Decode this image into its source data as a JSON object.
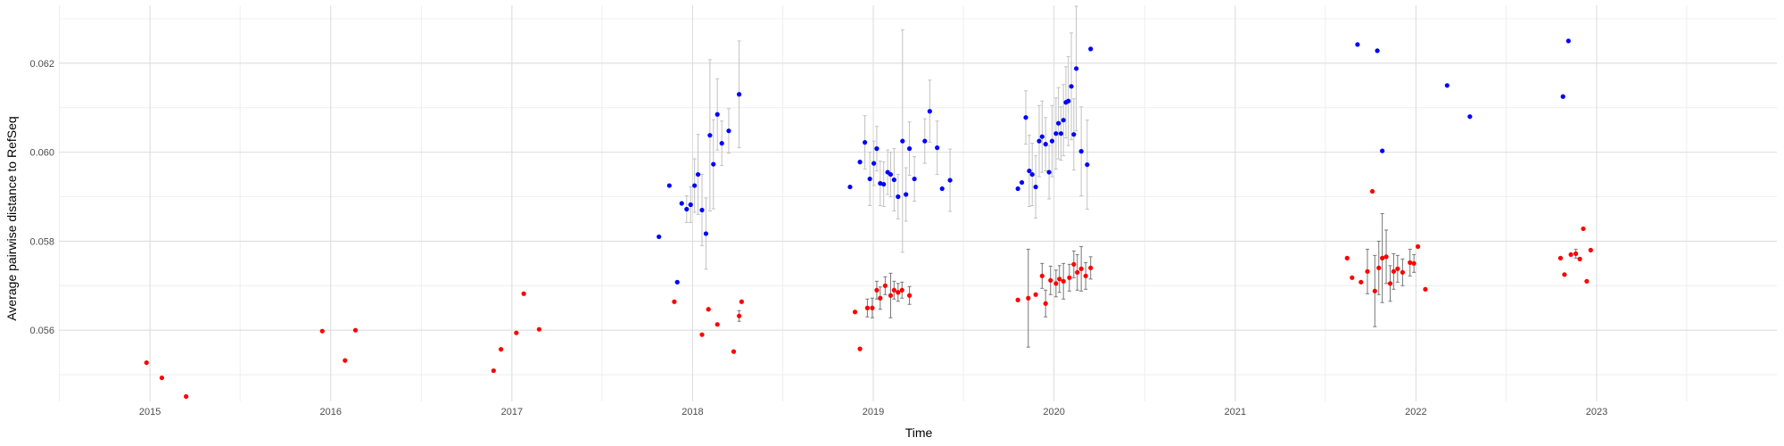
{
  "chart_data": {
    "type": "scatter",
    "title": "",
    "xlabel": "Time",
    "ylabel": "Average pairwise distance to RefSeq",
    "x_type": "date",
    "xlim": [
      "2014-07-01",
      "2023-12-31"
    ],
    "ylim": [
      0.0544,
      0.0633
    ],
    "x_ticks": [
      "2015",
      "2016",
      "2017",
      "2018",
      "2019",
      "2020",
      "2021",
      "2022",
      "2023"
    ],
    "x_tick_dates": [
      "2015-01-01",
      "2016-01-01",
      "2017-01-01",
      "2018-01-01",
      "2019-01-01",
      "2020-01-01",
      "2021-01-01",
      "2022-01-01",
      "2023-01-01"
    ],
    "y_ticks": [
      0.056,
      0.058,
      0.06,
      0.062
    ],
    "y_tick_labels": [
      "0.056",
      "0.058",
      "0.060",
      "0.062"
    ],
    "grid": true,
    "legend": "none",
    "series": [
      {
        "color": "#ff0000",
        "points": [
          {
            "x": "2014-12-25",
            "y": 0.05527
          },
          {
            "x": "2015-01-25",
            "y": 0.05493
          },
          {
            "x": "2015-03-15",
            "y": 0.05451
          },
          {
            "x": "2015-12-15",
            "y": 0.05598
          },
          {
            "x": "2016-01-30",
            "y": 0.05532
          },
          {
            "x": "2016-02-20",
            "y": 0.056
          },
          {
            "x": "2016-11-25",
            "y": 0.05509
          },
          {
            "x": "2016-12-10",
            "y": 0.05557
          },
          {
            "x": "2017-01-10",
            "y": 0.05594
          },
          {
            "x": "2017-01-25",
            "y": 0.05682
          },
          {
            "x": "2017-02-25",
            "y": 0.05602
          },
          {
            "x": "2017-11-25",
            "y": 0.05664
          },
          {
            "x": "2018-01-20",
            "y": 0.0559
          },
          {
            "x": "2018-02-02",
            "y": 0.05647
          },
          {
            "x": "2018-02-20",
            "y": 0.05613
          },
          {
            "x": "2018-03-25",
            "y": 0.05552
          },
          {
            "x": "2018-04-05",
            "y": 0.05632,
            "err": 0.00012
          },
          {
            "x": "2018-04-10",
            "y": 0.05664
          },
          {
            "x": "2018-11-25",
            "y": 0.05641
          },
          {
            "x": "2018-12-05",
            "y": 0.05558
          },
          {
            "x": "2018-12-20",
            "y": 0.0565,
            "err": 0.0002
          },
          {
            "x": "2018-12-30",
            "y": 0.0565,
            "err": 0.00022
          },
          {
            "x": "2019-01-08",
            "y": 0.0569,
            "err": 0.0002
          },
          {
            "x": "2019-01-15",
            "y": 0.05672,
            "err": 0.00025
          },
          {
            "x": "2019-01-25",
            "y": 0.057,
            "err": 0.0002
          },
          {
            "x": "2019-02-05",
            "y": 0.05678,
            "err": 0.0005
          },
          {
            "x": "2019-02-12",
            "y": 0.0569,
            "err": 0.0002
          },
          {
            "x": "2019-02-20",
            "y": 0.05685,
            "err": 0.0002
          },
          {
            "x": "2019-02-28",
            "y": 0.0569,
            "err": 0.00018
          },
          {
            "x": "2019-03-15",
            "y": 0.05678,
            "err": 0.0002
          },
          {
            "x": "2019-10-20",
            "y": 0.05668
          },
          {
            "x": "2019-11-10",
            "y": 0.05672,
            "err": 0.0011
          },
          {
            "x": "2019-11-25",
            "y": 0.0568
          },
          {
            "x": "2019-12-08",
            "y": 0.05722,
            "err": 0.00028
          },
          {
            "x": "2019-12-15",
            "y": 0.0566,
            "err": 0.0003
          },
          {
            "x": "2019-12-25",
            "y": 0.05712,
            "err": 0.00032
          },
          {
            "x": "2020-01-05",
            "y": 0.05705,
            "err": 0.0003
          },
          {
            "x": "2020-01-12",
            "y": 0.05715,
            "err": 0.0003
          },
          {
            "x": "2020-01-20",
            "y": 0.0571,
            "err": 0.0004
          },
          {
            "x": "2020-02-01",
            "y": 0.05718,
            "err": 0.0003
          },
          {
            "x": "2020-02-10",
            "y": 0.05748,
            "err": 0.0003
          },
          {
            "x": "2020-02-17",
            "y": 0.0573,
            "err": 0.0004
          },
          {
            "x": "2020-02-25",
            "y": 0.05738,
            "err": 0.0005
          },
          {
            "x": "2020-03-05",
            "y": 0.05722,
            "err": 0.0003
          },
          {
            "x": "2020-03-15",
            "y": 0.0574,
            "err": 0.00025
          },
          {
            "x": "2021-08-15",
            "y": 0.05762
          },
          {
            "x": "2021-08-25",
            "y": 0.05718
          },
          {
            "x": "2021-09-12",
            "y": 0.05708
          },
          {
            "x": "2021-09-25",
            "y": 0.05732,
            "err": 0.0005
          },
          {
            "x": "2021-10-05",
            "y": 0.05912
          },
          {
            "x": "2021-10-10",
            "y": 0.05688,
            "err": 0.0008
          },
          {
            "x": "2021-10-18",
            "y": 0.0574,
            "err": 0.0006
          },
          {
            "x": "2021-10-25",
            "y": 0.05762,
            "err": 0.001
          },
          {
            "x": "2021-11-02",
            "y": 0.05765,
            "err": 0.0006
          },
          {
            "x": "2021-11-10",
            "y": 0.05705,
            "err": 0.0004
          },
          {
            "x": "2021-11-17",
            "y": 0.05732,
            "err": 0.0004
          },
          {
            "x": "2021-11-25",
            "y": 0.05738,
            "err": 0.0003
          },
          {
            "x": "2021-12-05",
            "y": 0.0573,
            "err": 0.0003
          },
          {
            "x": "2021-12-20",
            "y": 0.05752,
            "err": 0.0003
          },
          {
            "x": "2021-12-28",
            "y": 0.0575,
            "err": 0.0002
          },
          {
            "x": "2022-01-05",
            "y": 0.05788
          },
          {
            "x": "2022-01-20",
            "y": 0.05692
          },
          {
            "x": "2022-10-20",
            "y": 0.05762
          },
          {
            "x": "2022-10-28",
            "y": 0.05725
          },
          {
            "x": "2022-11-10",
            "y": 0.0577
          },
          {
            "x": "2022-11-20",
            "y": 0.05772,
            "err": 0.0001
          },
          {
            "x": "2022-11-28",
            "y": 0.0576
          },
          {
            "x": "2022-12-05",
            "y": 0.05828
          },
          {
            "x": "2022-12-12",
            "y": 0.0571
          },
          {
            "x": "2022-12-20",
            "y": 0.0578
          }
        ]
      },
      {
        "color": "#0000ff",
        "points": [
          {
            "x": "2017-10-25",
            "y": 0.0581
          },
          {
            "x": "2017-11-15",
            "y": 0.05925
          },
          {
            "x": "2017-12-01",
            "y": 0.05708
          },
          {
            "x": "2017-12-10",
            "y": 0.05885
          },
          {
            "x": "2017-12-20",
            "y": 0.05872,
            "err": 0.0003
          },
          {
            "x": "2017-12-28",
            "y": 0.05882,
            "err": 0.0004
          },
          {
            "x": "2018-01-05",
            "y": 0.05925,
            "err": 0.0006
          },
          {
            "x": "2018-01-12",
            "y": 0.0595,
            "err": 0.0009
          },
          {
            "x": "2018-01-20",
            "y": 0.0587,
            "err": 0.0008
          },
          {
            "x": "2018-01-28",
            "y": 0.05817,
            "err": 0.0008
          },
          {
            "x": "2018-02-05",
            "y": 0.06038,
            "err": 0.0017
          },
          {
            "x": "2018-02-12",
            "y": 0.05973,
            "err": 0.001
          },
          {
            "x": "2018-02-20",
            "y": 0.06085,
            "err": 0.0008
          },
          {
            "x": "2018-03-01",
            "y": 0.0602,
            "err": 0.0005
          },
          {
            "x": "2018-03-15",
            "y": 0.06048,
            "err": 0.0005
          },
          {
            "x": "2018-04-05",
            "y": 0.0613,
            "err": 0.0012
          },
          {
            "x": "2018-11-15",
            "y": 0.05922
          },
          {
            "x": "2018-12-05",
            "y": 0.05978
          },
          {
            "x": "2018-12-15",
            "y": 0.06022,
            "err": 0.0006
          },
          {
            "x": "2018-12-25",
            "y": 0.0594,
            "err": 0.0006
          },
          {
            "x": "2019-01-02",
            "y": 0.05975,
            "err": 0.0005
          },
          {
            "x": "2019-01-08",
            "y": 0.06008,
            "err": 0.0005
          },
          {
            "x": "2019-01-15",
            "y": 0.0593,
            "err": 0.0005
          },
          {
            "x": "2019-01-22",
            "y": 0.05928,
            "err": 0.0005
          },
          {
            "x": "2019-01-30",
            "y": 0.05955,
            "err": 0.0005
          },
          {
            "x": "2019-02-05",
            "y": 0.0595,
            "err": 0.0005
          },
          {
            "x": "2019-02-12",
            "y": 0.05938,
            "err": 0.0007
          },
          {
            "x": "2019-02-20",
            "y": 0.059,
            "err": 0.0005
          },
          {
            "x": "2019-03-01",
            "y": 0.06025,
            "err": 0.0025
          },
          {
            "x": "2019-03-08",
            "y": 0.05905,
            "err": 0.0006
          },
          {
            "x": "2019-03-15",
            "y": 0.06008,
            "err": 0.0006
          },
          {
            "x": "2019-03-25",
            "y": 0.0594,
            "err": 0.0005
          },
          {
            "x": "2019-04-15",
            "y": 0.06025,
            "err": 0.0005
          },
          {
            "x": "2019-04-25",
            "y": 0.06092,
            "err": 0.0007
          },
          {
            "x": "2019-05-10",
            "y": 0.0601,
            "err": 0.0006
          },
          {
            "x": "2019-05-20",
            "y": 0.05918
          },
          {
            "x": "2019-06-05",
            "y": 0.05937,
            "err": 0.0007
          },
          {
            "x": "2019-10-20",
            "y": 0.05918
          },
          {
            "x": "2019-10-28",
            "y": 0.05932
          },
          {
            "x": "2019-11-05",
            "y": 0.06078,
            "err": 0.0006
          },
          {
            "x": "2019-11-12",
            "y": 0.05958,
            "err": 0.0008
          },
          {
            "x": "2019-11-18",
            "y": 0.0595,
            "err": 0.0007
          },
          {
            "x": "2019-11-25",
            "y": 0.05922,
            "err": 0.0007
          },
          {
            "x": "2019-12-02",
            "y": 0.06025,
            "err": 0.0008
          },
          {
            "x": "2019-12-08",
            "y": 0.06035,
            "err": 0.0008
          },
          {
            "x": "2019-12-15",
            "y": 0.06018,
            "err": 0.0006
          },
          {
            "x": "2019-12-22",
            "y": 0.05955,
            "err": 0.0006
          },
          {
            "x": "2019-12-28",
            "y": 0.06025,
            "err": 0.0008
          },
          {
            "x": "2020-01-05",
            "y": 0.06042,
            "err": 0.0008
          },
          {
            "x": "2020-01-10",
            "y": 0.06065,
            "err": 0.0008
          },
          {
            "x": "2020-01-15",
            "y": 0.06042,
            "err": 0.0006
          },
          {
            "x": "2020-01-20",
            "y": 0.06072,
            "err": 0.0008
          },
          {
            "x": "2020-01-25",
            "y": 0.06112,
            "err": 0.0008
          },
          {
            "x": "2020-01-30",
            "y": 0.06115,
            "err": 0.001
          },
          {
            "x": "2020-02-05",
            "y": 0.06148,
            "err": 0.0012
          },
          {
            "x": "2020-02-10",
            "y": 0.0604,
            "err": 0.0008
          },
          {
            "x": "2020-02-15",
            "y": 0.06188,
            "err": 0.0014
          },
          {
            "x": "2020-02-25",
            "y": 0.06002,
            "err": 0.001
          },
          {
            "x": "2020-03-08",
            "y": 0.05972,
            "err": 0.001
          },
          {
            "x": "2020-03-15",
            "y": 0.06232
          },
          {
            "x": "2021-09-05",
            "y": 0.06242
          },
          {
            "x": "2021-10-15",
            "y": 0.06228
          },
          {
            "x": "2021-10-25",
            "y": 0.06003
          },
          {
            "x": "2022-03-05",
            "y": 0.0615
          },
          {
            "x": "2022-04-20",
            "y": 0.0608
          },
          {
            "x": "2022-10-25",
            "y": 0.06125
          },
          {
            "x": "2022-11-05",
            "y": 0.0625
          }
        ]
      }
    ]
  }
}
